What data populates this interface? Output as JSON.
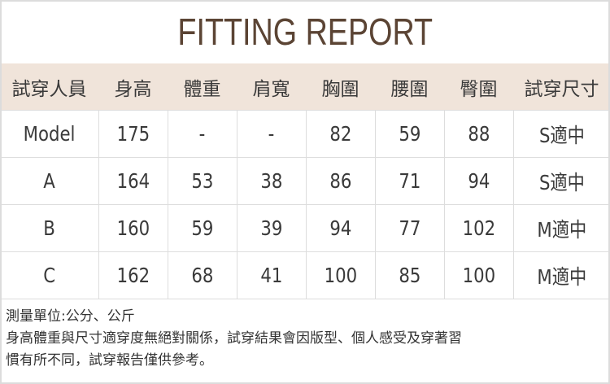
{
  "title": "FITTING REPORT",
  "colors": {
    "header_bg": "#f0e4da",
    "title": "#5b4434",
    "border": "#dddddd"
  },
  "table": {
    "headers": [
      "試穿人員",
      "身高",
      "體重",
      "肩寬",
      "胸圍",
      "腰圍",
      "臀圍",
      "試穿尺寸"
    ],
    "rows": [
      [
        "Model",
        "175",
        "-",
        "-",
        "82",
        "59",
        "88",
        "S適中"
      ],
      [
        "A",
        "164",
        "53",
        "38",
        "86",
        "71",
        "94",
        "S適中"
      ],
      [
        "B",
        "160",
        "59",
        "39",
        "94",
        "77",
        "102",
        "M適中"
      ],
      [
        "C",
        "162",
        "68",
        "41",
        "100",
        "85",
        "100",
        "M適中"
      ]
    ]
  },
  "notes": [
    "測量單位:公分、公斤",
    "身高體重與尺寸適穿度無絕對關係，試穿結果會因版型、個人感受及穿著習",
    "慣有所不同，試穿報告僅供參考。"
  ]
}
